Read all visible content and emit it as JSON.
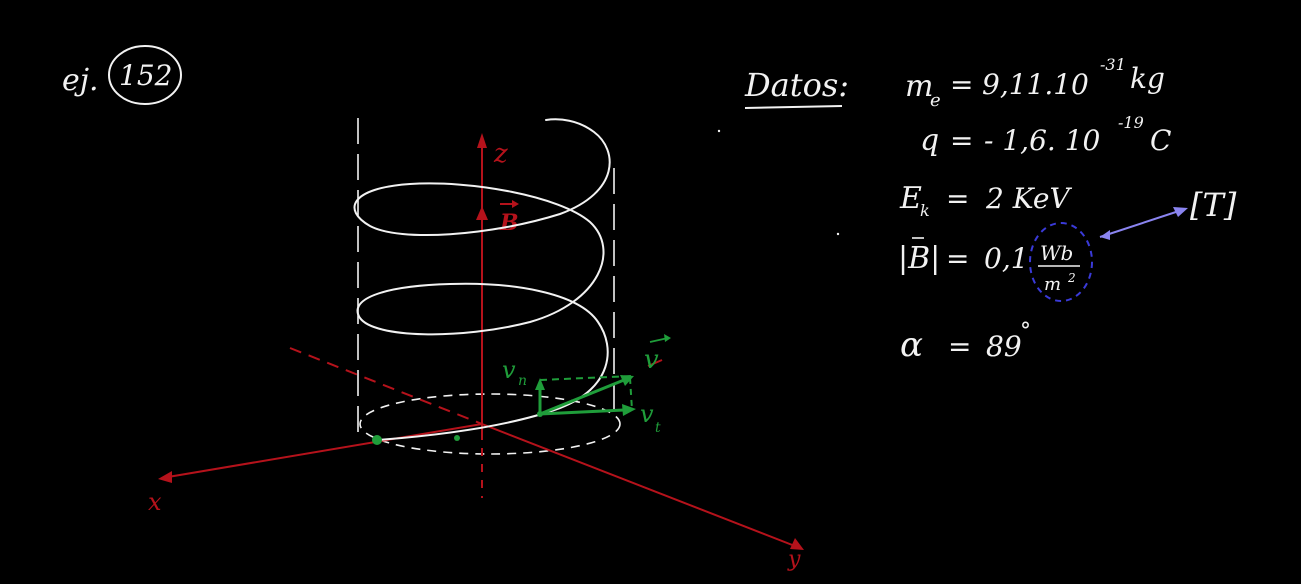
{
  "exercise": {
    "prefix": "ej.",
    "number": "152"
  },
  "data_panel": {
    "heading": "Datos:",
    "lines": {
      "mass": {
        "symbol": "m",
        "subscript": "e",
        "equals": "=",
        "value": "9,11.10",
        "exponent": "-31",
        "unit": "kg"
      },
      "charge": {
        "symbol": "q",
        "equals": "=",
        "value": "- 1,6. 10",
        "exponent": "-19",
        "unit": "C"
      },
      "energy": {
        "symbol": "E",
        "subscript": "k",
        "equals": "=",
        "value": "2 KeV"
      },
      "field": {
        "lhs": "|B|",
        "equals": "=",
        "value": "0,1",
        "unit_num": "Wb",
        "unit_den": "m",
        "unit_den_exp": "2"
      },
      "angle": {
        "symbol": "α",
        "equals": "=",
        "value": "89",
        "unit": "°"
      }
    },
    "unit_conversion": "[T]"
  },
  "diagram": {
    "labels": {
      "z_axis": "z",
      "x_axis": "x",
      "y_axis": "y",
      "b_field": "B",
      "v": "v",
      "v_n": "v",
      "v_n_sub": "n",
      "v_t": "v",
      "v_t_sub": "t"
    },
    "colors": {
      "background": "#000000",
      "chalk": "#f2f2f2",
      "axes": "#b5121b",
      "velocity": "#1f9d3a",
      "circle_highlight": "#3a3ad8",
      "arrow_highlight": "#8a84f0"
    }
  }
}
